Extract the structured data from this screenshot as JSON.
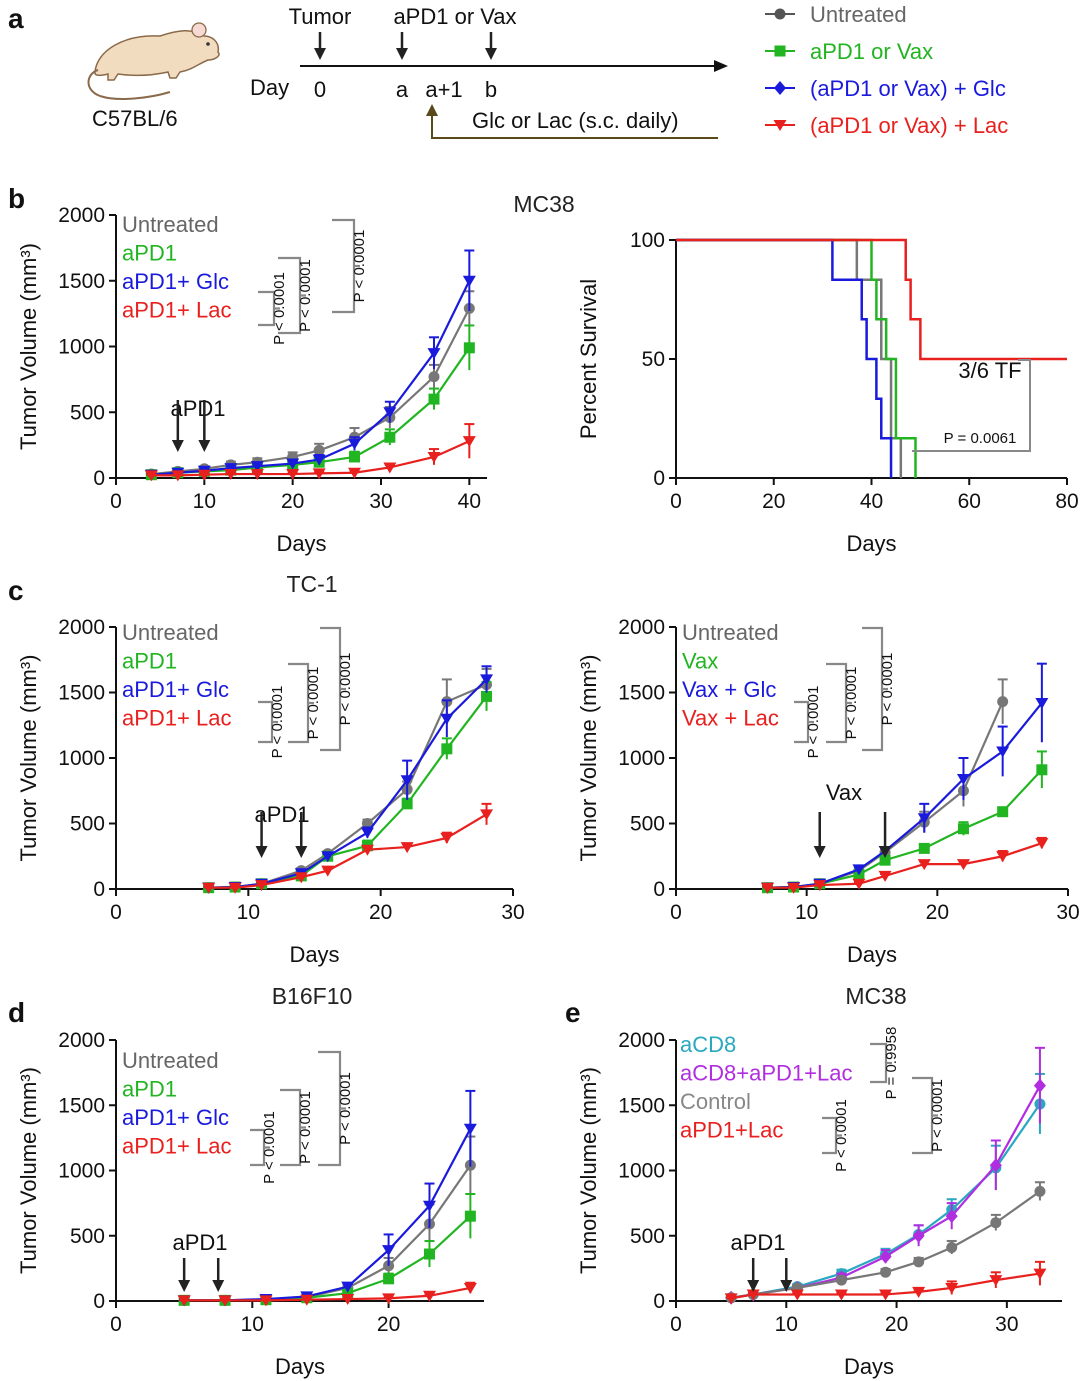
{
  "panel_letters": {
    "a": "a",
    "b": "b",
    "c": "c",
    "d": "d",
    "e": "e"
  },
  "schematic": {
    "mouse_label": "C57BL/6",
    "day_label": "Day",
    "points": [
      "0",
      "a",
      "a+1",
      "b"
    ],
    "tumor_label": "Tumor",
    "treat_label": "aPD1 or Vax",
    "daily_label": "Glc or Lac (s.c. daily)",
    "legend": [
      {
        "label": "Untreated",
        "color": "#555555",
        "marker": "circle"
      },
      {
        "label": "aPD1 or Vax",
        "color": "#22b522",
        "marker": "square"
      },
      {
        "label": "(aPD1 or Vax) + Glc",
        "color": "#1a1adc",
        "marker": "diamond"
      },
      {
        "label": "(aPD1 or Vax) + Lac",
        "color": "#e8201e",
        "marker": "tri_down"
      }
    ]
  },
  "colors": {
    "grey": "#777777",
    "green": "#22b522",
    "blue": "#1a1adc",
    "red": "#e8201e",
    "cyan": "#2aa8c0",
    "purple": "#b02ee0",
    "dark": "#111111"
  },
  "chart_data": [
    {
      "id": "b1",
      "type": "line",
      "title": "MC38",
      "xlabel": "Days",
      "ylabel": "Tumor Volume (mm³)",
      "xlim": [
        0,
        42
      ],
      "ylim": [
        0,
        2000
      ],
      "xticks": [
        0,
        10,
        20,
        30,
        40
      ],
      "yticks": [
        0,
        500,
        1000,
        1500,
        2000
      ],
      "annotation": "aPD1",
      "arrows_x": [
        7,
        10
      ],
      "legend": [
        "Untreated",
        "aPD1",
        "aPD1+ Glc",
        "aPD1+ Lac"
      ],
      "pvalues": [
        "P < 0.0001",
        "P < 0.0001",
        "P < 0.0001"
      ],
      "series": [
        {
          "name": "Untreated",
          "color": "grey",
          "marker": "circle",
          "x": [
            4,
            7,
            10,
            13,
            16,
            20,
            23,
            27,
            31,
            36,
            40
          ],
          "values": [
            30,
            50,
            70,
            100,
            120,
            160,
            210,
            310,
            460,
            770,
            1290
          ],
          "err": [
            10,
            15,
            20,
            25,
            30,
            35,
            50,
            70,
            80,
            90,
            130
          ]
        },
        {
          "name": "aPD1",
          "color": "green",
          "marker": "square",
          "x": [
            4,
            7,
            10,
            13,
            16,
            20,
            23,
            27,
            31,
            36,
            40
          ],
          "values": [
            25,
            40,
            50,
            60,
            80,
            100,
            120,
            160,
            310,
            600,
            990
          ],
          "err": [
            8,
            10,
            12,
            15,
            18,
            20,
            25,
            40,
            60,
            80,
            170
          ]
        },
        {
          "name": "aPD1+ Glc",
          "color": "blue",
          "marker": "tri_down",
          "x": [
            4,
            7,
            10,
            13,
            16,
            20,
            23,
            27,
            31,
            36,
            40
          ],
          "values": [
            25,
            40,
            55,
            75,
            90,
            110,
            140,
            260,
            500,
            950,
            1500
          ],
          "err": [
            8,
            10,
            12,
            15,
            18,
            25,
            35,
            50,
            80,
            120,
            230
          ]
        },
        {
          "name": "aPD1+ Lac",
          "color": "red",
          "marker": "tri_down",
          "x": [
            4,
            7,
            10,
            13,
            16,
            20,
            23,
            27,
            31,
            36,
            40
          ],
          "values": [
            20,
            20,
            25,
            30,
            30,
            30,
            35,
            40,
            80,
            160,
            280
          ],
          "err": [
            5,
            5,
            5,
            8,
            8,
            10,
            10,
            15,
            20,
            60,
            130
          ]
        }
      ]
    },
    {
      "id": "b2",
      "type": "line",
      "title": "",
      "xlabel": "Days",
      "ylabel": "Percent Survival",
      "xlim": [
        0,
        80
      ],
      "ylim": [
        0,
        100
      ],
      "xticks": [
        0,
        20,
        40,
        60,
        80
      ],
      "yticks": [
        0,
        50,
        100
      ],
      "annotation": "3/6 TF",
      "pvalue": "P = 0.0061",
      "series": [
        {
          "name": "Untreated",
          "color": "grey",
          "x": [
            0,
            37,
            37,
            42,
            42,
            44,
            44,
            46,
            46
          ],
          "values": [
            100,
            100,
            83.3,
            83.3,
            50,
            50,
            16.7,
            16.7,
            0
          ]
        },
        {
          "name": "aPD1",
          "color": "green",
          "x": [
            0,
            40,
            40,
            41,
            41,
            43,
            43,
            45,
            45,
            49,
            49
          ],
          "values": [
            100,
            100,
            83.3,
            83.3,
            66.7,
            66.7,
            50,
            50,
            16.7,
            16.7,
            0
          ]
        },
        {
          "name": "aPD1+ Glc",
          "color": "blue",
          "x": [
            0,
            32,
            32,
            38,
            38,
            39,
            39,
            41,
            41,
            42,
            42,
            44,
            44
          ],
          "values": [
            100,
            100,
            83.3,
            83.3,
            66.7,
            66.7,
            50,
            50,
            33.3,
            33.3,
            16.7,
            16.7,
            0
          ]
        },
        {
          "name": "aPD1+ Lac",
          "color": "red",
          "x": [
            0,
            42,
            42,
            47,
            47,
            48,
            48,
            50,
            50,
            80
          ],
          "values": [
            100,
            100,
            100,
            100,
            83.3,
            83.3,
            66.7,
            66.7,
            50,
            50
          ]
        }
      ]
    },
    {
      "id": "c1",
      "type": "line",
      "title": "TC-1",
      "xlabel": "Days",
      "ylabel": "Tumor Volume (mm³)",
      "xlim": [
        0,
        30
      ],
      "ylim": [
        0,
        2000
      ],
      "xticks": [
        0,
        10,
        20,
        30
      ],
      "yticks": [
        0,
        500,
        1000,
        1500,
        2000
      ],
      "annotation": "aPD1",
      "arrows_x": [
        11,
        14
      ],
      "legend": [
        "Untreated",
        "aPD1",
        "aPD1+ Glc",
        "aPD1+ Lac"
      ],
      "pvalues": [
        "P < 0.0001",
        "P < 0.0001",
        "P < 0.0001"
      ],
      "series": [
        {
          "name": "Untreated",
          "color": "grey",
          "marker": "circle",
          "x": [
            7,
            9,
            11,
            14,
            16,
            19,
            22,
            25,
            28
          ],
          "values": [
            10,
            15,
            40,
            140,
            270,
            500,
            760,
            1430,
            1560
          ],
          "err": [
            5,
            5,
            10,
            20,
            20,
            30,
            60,
            170,
            120
          ]
        },
        {
          "name": "aPD1",
          "color": "green",
          "marker": "square",
          "x": [
            7,
            9,
            11,
            14,
            16,
            19,
            22,
            25,
            28
          ],
          "values": [
            10,
            15,
            40,
            100,
            250,
            330,
            650,
            1070,
            1470
          ],
          "err": [
            5,
            5,
            10,
            15,
            20,
            40,
            40,
            80,
            110
          ]
        },
        {
          "name": "aPD1+ Glc",
          "color": "blue",
          "marker": "tri_down",
          "x": [
            7,
            9,
            11,
            14,
            16,
            19,
            22,
            25,
            28
          ],
          "values": [
            10,
            15,
            40,
            120,
            250,
            430,
            830,
            1300,
            1600
          ],
          "err": [
            5,
            5,
            10,
            20,
            20,
            40,
            150,
            140,
            100
          ]
        },
        {
          "name": "aPD1+ Lac",
          "color": "red",
          "marker": "tri_down",
          "x": [
            7,
            9,
            11,
            14,
            16,
            19,
            22,
            25,
            28
          ],
          "values": [
            10,
            10,
            30,
            90,
            140,
            300,
            320,
            390,
            570
          ],
          "err": [
            3,
            3,
            5,
            10,
            15,
            20,
            20,
            40,
            80
          ]
        }
      ]
    },
    {
      "id": "c2",
      "type": "line",
      "title": "",
      "xlabel": "Days",
      "ylabel": "Tumor Volume (mm³)",
      "xlim": [
        0,
        30
      ],
      "ylim": [
        0,
        2000
      ],
      "xticks": [
        0,
        10,
        20,
        30
      ],
      "yticks": [
        0,
        500,
        1000,
        1500,
        2000
      ],
      "annotation": "Vax",
      "arrows_x": [
        11,
        16
      ],
      "legend": [
        "Untreated",
        "Vax",
        "Vax + Glc",
        "Vax + Lac"
      ],
      "pvalues": [
        "P < 0.0001",
        "P < 0.0001",
        "P < 0.0001"
      ],
      "series": [
        {
          "name": "Untreated",
          "color": "grey",
          "marker": "circle",
          "x": [
            7,
            9,
            11,
            14,
            16,
            19,
            22,
            25
          ],
          "values": [
            10,
            15,
            40,
            140,
            280,
            510,
            750,
            1430
          ],
          "err": [
            5,
            5,
            10,
            20,
            30,
            80,
            120,
            170
          ]
        },
        {
          "name": "Vax",
          "color": "green",
          "marker": "square",
          "x": [
            7,
            9,
            11,
            14,
            16,
            19,
            22,
            25,
            28
          ],
          "values": [
            10,
            15,
            40,
            110,
            220,
            310,
            460,
            590,
            910
          ],
          "err": [
            5,
            5,
            10,
            15,
            20,
            30,
            50,
            30,
            140
          ]
        },
        {
          "name": "Vax + Glc",
          "color": "blue",
          "marker": "tri_down",
          "x": [
            7,
            9,
            11,
            14,
            16,
            19,
            22,
            25,
            28
          ],
          "values": [
            10,
            15,
            40,
            150,
            290,
            540,
            840,
            1050,
            1420
          ],
          "err": [
            5,
            5,
            10,
            20,
            30,
            110,
            160,
            190,
            300
          ]
        },
        {
          "name": "Vax + Lac",
          "color": "red",
          "marker": "tri_down",
          "x": [
            7,
            9,
            11,
            14,
            16,
            19,
            22,
            25,
            28
          ],
          "values": [
            10,
            10,
            30,
            40,
            100,
            190,
            190,
            250,
            350
          ],
          "err": [
            3,
            3,
            5,
            10,
            15,
            20,
            20,
            40,
            40
          ]
        }
      ]
    },
    {
      "id": "d",
      "type": "line",
      "title": "B16F10",
      "xlabel": "Days",
      "ylabel": "Tumor Volume (mm³)",
      "xlim": [
        0,
        27
      ],
      "ylim": [
        0,
        2000
      ],
      "xticks": [
        0,
        10,
        20
      ],
      "yticks": [
        0,
        500,
        1000,
        1500,
        2000
      ],
      "annotation": "aPD1",
      "arrows_x": [
        5,
        7.5
      ],
      "legend": [
        "Untreated",
        "aPD1",
        "aPD1+ Glc",
        "aPD1+ Lac"
      ],
      "pvalues": [
        "P < 0.0001",
        "P < 0.0001",
        "P < 0.0001"
      ],
      "series": [
        {
          "name": "Untreated",
          "color": "grey",
          "marker": "circle",
          "x": [
            5,
            8,
            11,
            14,
            17,
            20,
            23,
            26
          ],
          "values": [
            5,
            5,
            10,
            30,
            100,
            270,
            590,
            1040
          ],
          "err": [
            2,
            2,
            5,
            10,
            20,
            60,
            150,
            220
          ]
        },
        {
          "name": "aPD1",
          "color": "green",
          "marker": "square",
          "x": [
            5,
            8,
            11,
            14,
            17,
            20,
            23,
            26
          ],
          "values": [
            5,
            5,
            10,
            25,
            60,
            170,
            360,
            650
          ],
          "err": [
            2,
            2,
            5,
            10,
            15,
            40,
            100,
            170
          ]
        },
        {
          "name": "aPD1+ Glc",
          "color": "blue",
          "marker": "tri_down",
          "x": [
            5,
            8,
            11,
            14,
            17,
            20,
            23,
            26
          ],
          "values": [
            5,
            5,
            15,
            35,
            110,
            390,
            730,
            1320
          ],
          "err": [
            2,
            2,
            5,
            10,
            20,
            120,
            170,
            290
          ]
        },
        {
          "name": "aPD1+ Lac",
          "color": "red",
          "marker": "tri_down",
          "x": [
            5,
            8,
            11,
            14,
            17,
            20,
            23,
            26
          ],
          "values": [
            5,
            5,
            5,
            10,
            15,
            20,
            40,
            100
          ],
          "err": [
            2,
            2,
            2,
            3,
            5,
            5,
            15,
            40
          ]
        }
      ]
    },
    {
      "id": "e",
      "type": "line",
      "title": "MC38",
      "xlabel": "Days",
      "ylabel": "Tumor Volume (mm³)",
      "xlim": [
        0,
        35
      ],
      "ylim": [
        0,
        2000
      ],
      "xticks": [
        0,
        10,
        20,
        30
      ],
      "yticks": [
        0,
        500,
        1000,
        1500,
        2000
      ],
      "annotation": "aPD1",
      "arrows_x": [
        7,
        10
      ],
      "legend": [
        "aCD8",
        "aCD8+aPD1+Lac",
        "Control",
        "aPD1+Lac"
      ],
      "pvalues": [
        "P = 0.9958",
        "P < 0.0001",
        "P < 0.0001"
      ],
      "series": [
        {
          "name": "aCD8",
          "color": "cyan",
          "marker": "circle",
          "x": [
            5,
            7,
            11,
            15,
            19,
            22,
            25,
            29,
            33
          ],
          "values": [
            25,
            50,
            110,
            210,
            360,
            510,
            700,
            1020,
            1510
          ],
          "err": [
            5,
            10,
            20,
            30,
            40,
            70,
            80,
            170,
            230
          ]
        },
        {
          "name": "aCD8+aPD1+Lac",
          "color": "purple",
          "marker": "diamond",
          "x": [
            5,
            7,
            11,
            15,
            19,
            22,
            25,
            29,
            33
          ],
          "values": [
            25,
            50,
            100,
            180,
            340,
            500,
            650,
            1040,
            1650
          ],
          "err": [
            5,
            10,
            20,
            30,
            50,
            80,
            100,
            190,
            290
          ]
        },
        {
          "name": "Control",
          "color": "grey",
          "marker": "circle",
          "x": [
            5,
            7,
            11,
            15,
            19,
            22,
            25,
            29,
            33
          ],
          "values": [
            25,
            50,
            100,
            160,
            220,
            300,
            410,
            600,
            840
          ],
          "err": [
            5,
            10,
            15,
            20,
            25,
            30,
            50,
            60,
            70
          ]
        },
        {
          "name": "aPD1+Lac",
          "color": "red",
          "marker": "tri_down",
          "x": [
            5,
            7,
            11,
            15,
            19,
            22,
            25,
            29,
            33
          ],
          "values": [
            20,
            50,
            50,
            50,
            50,
            70,
            100,
            160,
            210
          ],
          "err": [
            5,
            10,
            10,
            10,
            10,
            15,
            50,
            60,
            90
          ]
        }
      ]
    }
  ]
}
